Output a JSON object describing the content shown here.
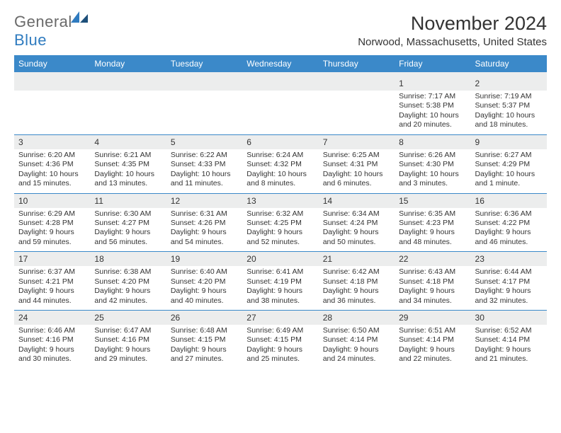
{
  "brand": {
    "text_general": "General",
    "text_blue": "Blue",
    "general_color": "#6a6a6a",
    "blue_color": "#2f7bbf"
  },
  "title": "November 2024",
  "location": "Norwood, Massachusetts, United States",
  "colors": {
    "header_bg": "#3b89c9",
    "header_text": "#ffffff",
    "date_bar_bg": "#eceded",
    "text": "#333333",
    "week_border": "#3b89c9",
    "page_bg": "#ffffff"
  },
  "day_headers": [
    "Sunday",
    "Monday",
    "Tuesday",
    "Wednesday",
    "Thursday",
    "Friday",
    "Saturday"
  ],
  "weeks": [
    [
      null,
      null,
      null,
      null,
      null,
      {
        "date": "1",
        "sunrise": "Sunrise: 7:17 AM",
        "sunset": "Sunset: 5:38 PM",
        "daylight": "Daylight: 10 hours and 20 minutes."
      },
      {
        "date": "2",
        "sunrise": "Sunrise: 7:19 AM",
        "sunset": "Sunset: 5:37 PM",
        "daylight": "Daylight: 10 hours and 18 minutes."
      }
    ],
    [
      {
        "date": "3",
        "sunrise": "Sunrise: 6:20 AM",
        "sunset": "Sunset: 4:36 PM",
        "daylight": "Daylight: 10 hours and 15 minutes."
      },
      {
        "date": "4",
        "sunrise": "Sunrise: 6:21 AM",
        "sunset": "Sunset: 4:35 PM",
        "daylight": "Daylight: 10 hours and 13 minutes."
      },
      {
        "date": "5",
        "sunrise": "Sunrise: 6:22 AM",
        "sunset": "Sunset: 4:33 PM",
        "daylight": "Daylight: 10 hours and 11 minutes."
      },
      {
        "date": "6",
        "sunrise": "Sunrise: 6:24 AM",
        "sunset": "Sunset: 4:32 PM",
        "daylight": "Daylight: 10 hours and 8 minutes."
      },
      {
        "date": "7",
        "sunrise": "Sunrise: 6:25 AM",
        "sunset": "Sunset: 4:31 PM",
        "daylight": "Daylight: 10 hours and 6 minutes."
      },
      {
        "date": "8",
        "sunrise": "Sunrise: 6:26 AM",
        "sunset": "Sunset: 4:30 PM",
        "daylight": "Daylight: 10 hours and 3 minutes."
      },
      {
        "date": "9",
        "sunrise": "Sunrise: 6:27 AM",
        "sunset": "Sunset: 4:29 PM",
        "daylight": "Daylight: 10 hours and 1 minute."
      }
    ],
    [
      {
        "date": "10",
        "sunrise": "Sunrise: 6:29 AM",
        "sunset": "Sunset: 4:28 PM",
        "daylight": "Daylight: 9 hours and 59 minutes."
      },
      {
        "date": "11",
        "sunrise": "Sunrise: 6:30 AM",
        "sunset": "Sunset: 4:27 PM",
        "daylight": "Daylight: 9 hours and 56 minutes."
      },
      {
        "date": "12",
        "sunrise": "Sunrise: 6:31 AM",
        "sunset": "Sunset: 4:26 PM",
        "daylight": "Daylight: 9 hours and 54 minutes."
      },
      {
        "date": "13",
        "sunrise": "Sunrise: 6:32 AM",
        "sunset": "Sunset: 4:25 PM",
        "daylight": "Daylight: 9 hours and 52 minutes."
      },
      {
        "date": "14",
        "sunrise": "Sunrise: 6:34 AM",
        "sunset": "Sunset: 4:24 PM",
        "daylight": "Daylight: 9 hours and 50 minutes."
      },
      {
        "date": "15",
        "sunrise": "Sunrise: 6:35 AM",
        "sunset": "Sunset: 4:23 PM",
        "daylight": "Daylight: 9 hours and 48 minutes."
      },
      {
        "date": "16",
        "sunrise": "Sunrise: 6:36 AM",
        "sunset": "Sunset: 4:22 PM",
        "daylight": "Daylight: 9 hours and 46 minutes."
      }
    ],
    [
      {
        "date": "17",
        "sunrise": "Sunrise: 6:37 AM",
        "sunset": "Sunset: 4:21 PM",
        "daylight": "Daylight: 9 hours and 44 minutes."
      },
      {
        "date": "18",
        "sunrise": "Sunrise: 6:38 AM",
        "sunset": "Sunset: 4:20 PM",
        "daylight": "Daylight: 9 hours and 42 minutes."
      },
      {
        "date": "19",
        "sunrise": "Sunrise: 6:40 AM",
        "sunset": "Sunset: 4:20 PM",
        "daylight": "Daylight: 9 hours and 40 minutes."
      },
      {
        "date": "20",
        "sunrise": "Sunrise: 6:41 AM",
        "sunset": "Sunset: 4:19 PM",
        "daylight": "Daylight: 9 hours and 38 minutes."
      },
      {
        "date": "21",
        "sunrise": "Sunrise: 6:42 AM",
        "sunset": "Sunset: 4:18 PM",
        "daylight": "Daylight: 9 hours and 36 minutes."
      },
      {
        "date": "22",
        "sunrise": "Sunrise: 6:43 AM",
        "sunset": "Sunset: 4:18 PM",
        "daylight": "Daylight: 9 hours and 34 minutes."
      },
      {
        "date": "23",
        "sunrise": "Sunrise: 6:44 AM",
        "sunset": "Sunset: 4:17 PM",
        "daylight": "Daylight: 9 hours and 32 minutes."
      }
    ],
    [
      {
        "date": "24",
        "sunrise": "Sunrise: 6:46 AM",
        "sunset": "Sunset: 4:16 PM",
        "daylight": "Daylight: 9 hours and 30 minutes."
      },
      {
        "date": "25",
        "sunrise": "Sunrise: 6:47 AM",
        "sunset": "Sunset: 4:16 PM",
        "daylight": "Daylight: 9 hours and 29 minutes."
      },
      {
        "date": "26",
        "sunrise": "Sunrise: 6:48 AM",
        "sunset": "Sunset: 4:15 PM",
        "daylight": "Daylight: 9 hours and 27 minutes."
      },
      {
        "date": "27",
        "sunrise": "Sunrise: 6:49 AM",
        "sunset": "Sunset: 4:15 PM",
        "daylight": "Daylight: 9 hours and 25 minutes."
      },
      {
        "date": "28",
        "sunrise": "Sunrise: 6:50 AM",
        "sunset": "Sunset: 4:14 PM",
        "daylight": "Daylight: 9 hours and 24 minutes."
      },
      {
        "date": "29",
        "sunrise": "Sunrise: 6:51 AM",
        "sunset": "Sunset: 4:14 PM",
        "daylight": "Daylight: 9 hours and 22 minutes."
      },
      {
        "date": "30",
        "sunrise": "Sunrise: 6:52 AM",
        "sunset": "Sunset: 4:14 PM",
        "daylight": "Daylight: 9 hours and 21 minutes."
      }
    ]
  ]
}
